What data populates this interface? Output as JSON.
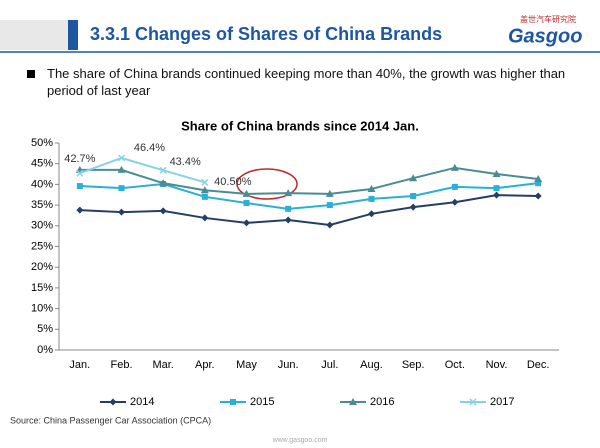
{
  "header": {
    "title": "3.3.1 Changes of Shares of China Brands",
    "logo_cn": "盖世汽车研究院",
    "logo": "Gasgoo"
  },
  "bullet": "The share of China brands continued keeping more than 40%, the growth was higher than period of last year",
  "chart_data": {
    "type": "line",
    "title": "Share of China brands since 2014 Jan.",
    "categories": [
      "Jan.",
      "Feb.",
      "Mar.",
      "Apr.",
      "May",
      "Jun.",
      "Jul.",
      "Aug.",
      "Sep.",
      "Oct.",
      "Nov.",
      "Dec."
    ],
    "series": [
      {
        "name": "2014",
        "color": "#243f66",
        "marker": "diamond",
        "values": [
          33.8,
          33.3,
          33.6,
          31.9,
          30.7,
          31.4,
          30.2,
          32.9,
          34.5,
          35.7,
          37.4,
          37.2
        ]
      },
      {
        "name": "2015",
        "color": "#2aafd6",
        "marker": "square",
        "values": [
          39.6,
          39.1,
          40.1,
          37.0,
          35.5,
          34.1,
          35.0,
          36.5,
          37.2,
          39.4,
          39.1,
          40.3
        ]
      },
      {
        "name": "2016",
        "color": "#4b8c94",
        "marker": "triangle",
        "values": [
          43.5,
          43.5,
          40.3,
          38.6,
          37.7,
          37.9,
          37.7,
          38.9,
          41.5,
          44.0,
          42.5,
          41.3
        ]
      },
      {
        "name": "2017",
        "color": "#86d3e6",
        "marker": "x",
        "values": [
          42.7,
          46.4,
          43.4,
          40.5,
          null,
          null,
          null,
          null,
          null,
          null,
          null,
          null
        ],
        "value_labels": [
          "42.7%",
          "46.4%",
          "43.4%",
          "40.50%",
          null,
          null,
          null,
          null,
          null,
          null,
          null,
          null
        ]
      }
    ],
    "ylim": [
      0,
      50
    ],
    "yticks": [
      {
        "value": 0,
        "label": "0%"
      },
      {
        "value": 5,
        "label": "5%"
      },
      {
        "value": 10,
        "label": "10%"
      },
      {
        "value": 15,
        "label": "15%"
      },
      {
        "value": 20,
        "label": "20%"
      },
      {
        "value": 25,
        "label": "25%"
      },
      {
        "value": 30,
        "label": "30%"
      },
      {
        "value": 35,
        "label": "35%"
      },
      {
        "value": 40,
        "label": "40%"
      },
      {
        "value": 45,
        "label": "45%"
      },
      {
        "value": 50,
        "label": "50%"
      }
    ],
    "grid": false,
    "legend": "bottom"
  },
  "source": "Source: China Passenger Car Association (CPCA)",
  "footer_url": "www.gasgoo.com"
}
